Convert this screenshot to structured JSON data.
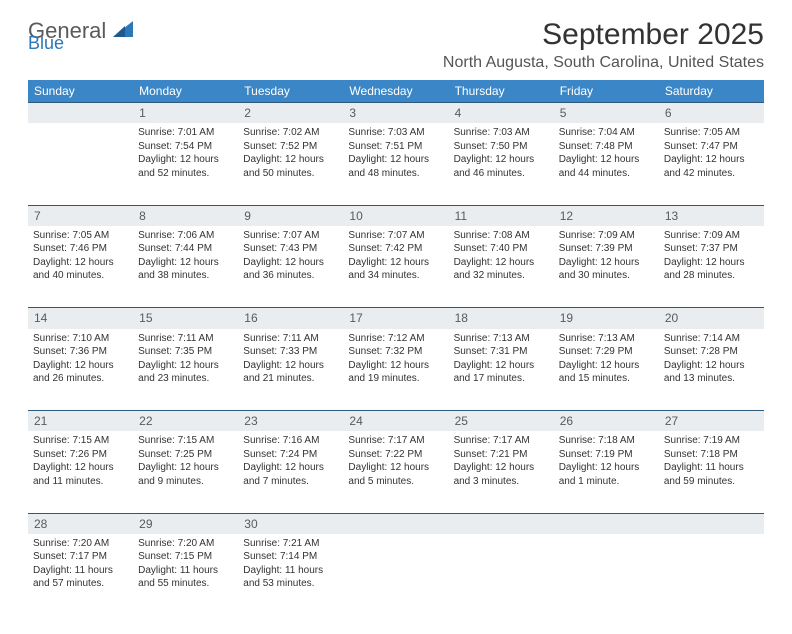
{
  "brand": {
    "text1": "General",
    "text2": "Blue"
  },
  "header": {
    "month_title": "September 2025",
    "location": "North Augusta, South Carolina, United States"
  },
  "colors": {
    "header_bg": "#3b86c6",
    "header_fg": "#ffffff",
    "daynum_bg": "#e9edf0",
    "daynum_fg": "#5a5a5a",
    "row_border": "#2e5a7a",
    "brand_gray": "#5a5a5a",
    "brand_blue": "#2e77b8"
  },
  "weekdays": [
    "Sunday",
    "Monday",
    "Tuesday",
    "Wednesday",
    "Thursday",
    "Friday",
    "Saturday"
  ],
  "weeks": [
    {
      "nums": [
        "",
        "1",
        "2",
        "3",
        "4",
        "5",
        "6"
      ],
      "cells": [
        null,
        {
          "sunrise": "Sunrise: 7:01 AM",
          "sunset": "Sunset: 7:54 PM",
          "day1": "Daylight: 12 hours",
          "day2": "and 52 minutes."
        },
        {
          "sunrise": "Sunrise: 7:02 AM",
          "sunset": "Sunset: 7:52 PM",
          "day1": "Daylight: 12 hours",
          "day2": "and 50 minutes."
        },
        {
          "sunrise": "Sunrise: 7:03 AM",
          "sunset": "Sunset: 7:51 PM",
          "day1": "Daylight: 12 hours",
          "day2": "and 48 minutes."
        },
        {
          "sunrise": "Sunrise: 7:03 AM",
          "sunset": "Sunset: 7:50 PM",
          "day1": "Daylight: 12 hours",
          "day2": "and 46 minutes."
        },
        {
          "sunrise": "Sunrise: 7:04 AM",
          "sunset": "Sunset: 7:48 PM",
          "day1": "Daylight: 12 hours",
          "day2": "and 44 minutes."
        },
        {
          "sunrise": "Sunrise: 7:05 AM",
          "sunset": "Sunset: 7:47 PM",
          "day1": "Daylight: 12 hours",
          "day2": "and 42 minutes."
        }
      ]
    },
    {
      "nums": [
        "7",
        "8",
        "9",
        "10",
        "11",
        "12",
        "13"
      ],
      "cells": [
        {
          "sunrise": "Sunrise: 7:05 AM",
          "sunset": "Sunset: 7:46 PM",
          "day1": "Daylight: 12 hours",
          "day2": "and 40 minutes."
        },
        {
          "sunrise": "Sunrise: 7:06 AM",
          "sunset": "Sunset: 7:44 PM",
          "day1": "Daylight: 12 hours",
          "day2": "and 38 minutes."
        },
        {
          "sunrise": "Sunrise: 7:07 AM",
          "sunset": "Sunset: 7:43 PM",
          "day1": "Daylight: 12 hours",
          "day2": "and 36 minutes."
        },
        {
          "sunrise": "Sunrise: 7:07 AM",
          "sunset": "Sunset: 7:42 PM",
          "day1": "Daylight: 12 hours",
          "day2": "and 34 minutes."
        },
        {
          "sunrise": "Sunrise: 7:08 AM",
          "sunset": "Sunset: 7:40 PM",
          "day1": "Daylight: 12 hours",
          "day2": "and 32 minutes."
        },
        {
          "sunrise": "Sunrise: 7:09 AM",
          "sunset": "Sunset: 7:39 PM",
          "day1": "Daylight: 12 hours",
          "day2": "and 30 minutes."
        },
        {
          "sunrise": "Sunrise: 7:09 AM",
          "sunset": "Sunset: 7:37 PM",
          "day1": "Daylight: 12 hours",
          "day2": "and 28 minutes."
        }
      ]
    },
    {
      "nums": [
        "14",
        "15",
        "16",
        "17",
        "18",
        "19",
        "20"
      ],
      "cells": [
        {
          "sunrise": "Sunrise: 7:10 AM",
          "sunset": "Sunset: 7:36 PM",
          "day1": "Daylight: 12 hours",
          "day2": "and 26 minutes."
        },
        {
          "sunrise": "Sunrise: 7:11 AM",
          "sunset": "Sunset: 7:35 PM",
          "day1": "Daylight: 12 hours",
          "day2": "and 23 minutes."
        },
        {
          "sunrise": "Sunrise: 7:11 AM",
          "sunset": "Sunset: 7:33 PM",
          "day1": "Daylight: 12 hours",
          "day2": "and 21 minutes."
        },
        {
          "sunrise": "Sunrise: 7:12 AM",
          "sunset": "Sunset: 7:32 PM",
          "day1": "Daylight: 12 hours",
          "day2": "and 19 minutes."
        },
        {
          "sunrise": "Sunrise: 7:13 AM",
          "sunset": "Sunset: 7:31 PM",
          "day1": "Daylight: 12 hours",
          "day2": "and 17 minutes."
        },
        {
          "sunrise": "Sunrise: 7:13 AM",
          "sunset": "Sunset: 7:29 PM",
          "day1": "Daylight: 12 hours",
          "day2": "and 15 minutes."
        },
        {
          "sunrise": "Sunrise: 7:14 AM",
          "sunset": "Sunset: 7:28 PM",
          "day1": "Daylight: 12 hours",
          "day2": "and 13 minutes."
        }
      ]
    },
    {
      "nums": [
        "21",
        "22",
        "23",
        "24",
        "25",
        "26",
        "27"
      ],
      "cells": [
        {
          "sunrise": "Sunrise: 7:15 AM",
          "sunset": "Sunset: 7:26 PM",
          "day1": "Daylight: 12 hours",
          "day2": "and 11 minutes."
        },
        {
          "sunrise": "Sunrise: 7:15 AM",
          "sunset": "Sunset: 7:25 PM",
          "day1": "Daylight: 12 hours",
          "day2": "and 9 minutes."
        },
        {
          "sunrise": "Sunrise: 7:16 AM",
          "sunset": "Sunset: 7:24 PM",
          "day1": "Daylight: 12 hours",
          "day2": "and 7 minutes."
        },
        {
          "sunrise": "Sunrise: 7:17 AM",
          "sunset": "Sunset: 7:22 PM",
          "day1": "Daylight: 12 hours",
          "day2": "and 5 minutes."
        },
        {
          "sunrise": "Sunrise: 7:17 AM",
          "sunset": "Sunset: 7:21 PM",
          "day1": "Daylight: 12 hours",
          "day2": "and 3 minutes."
        },
        {
          "sunrise": "Sunrise: 7:18 AM",
          "sunset": "Sunset: 7:19 PM",
          "day1": "Daylight: 12 hours",
          "day2": "and 1 minute."
        },
        {
          "sunrise": "Sunrise: 7:19 AM",
          "sunset": "Sunset: 7:18 PM",
          "day1": "Daylight: 11 hours",
          "day2": "and 59 minutes."
        }
      ]
    },
    {
      "nums": [
        "28",
        "29",
        "30",
        "",
        "",
        "",
        ""
      ],
      "cells": [
        {
          "sunrise": "Sunrise: 7:20 AM",
          "sunset": "Sunset: 7:17 PM",
          "day1": "Daylight: 11 hours",
          "day2": "and 57 minutes."
        },
        {
          "sunrise": "Sunrise: 7:20 AM",
          "sunset": "Sunset: 7:15 PM",
          "day1": "Daylight: 11 hours",
          "day2": "and 55 minutes."
        },
        {
          "sunrise": "Sunrise: 7:21 AM",
          "sunset": "Sunset: 7:14 PM",
          "day1": "Daylight: 11 hours",
          "day2": "and 53 minutes."
        },
        null,
        null,
        null,
        null
      ]
    }
  ]
}
